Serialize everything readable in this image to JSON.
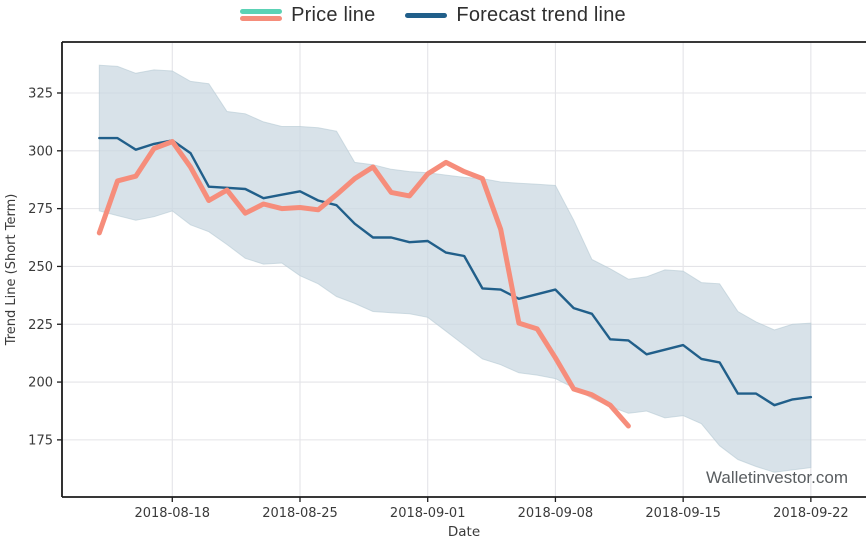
{
  "legend": {
    "price_label": "Price line",
    "forecast_label": "Forecast trend line"
  },
  "watermark": "Walletinvestor.com",
  "colors": {
    "price": "#f68d7b",
    "price_legend_teal": "#5bd2b5",
    "forecast": "#215f8a",
    "band": "#c9d7e0",
    "grid": "#e4e4e8",
    "axis": "#1c1c1c",
    "tick_text": "#3a3a3a"
  },
  "axes": {
    "x_title": "Date",
    "y_title": "Trend Line (Short Term)",
    "y_ticks": [
      325,
      300,
      275,
      250,
      225,
      200,
      175
    ],
    "x_tick_labels": [
      "2018-08-18",
      "2018-08-25",
      "2018-09-01",
      "2018-09-08",
      "2018-09-15",
      "2018-09-22"
    ],
    "x_tick_indices": [
      4,
      11,
      18,
      25,
      32,
      39
    ]
  },
  "chart_data": {
    "type": "line",
    "title": "",
    "xlabel": "Date",
    "ylabel": "Trend Line (Short Term)",
    "ylim": [
      150,
      347
    ],
    "grid": true,
    "legend_position": "top-center",
    "x": [
      "2018-08-14",
      "2018-08-15",
      "2018-08-16",
      "2018-08-17",
      "2018-08-18",
      "2018-08-19",
      "2018-08-20",
      "2018-08-21",
      "2018-08-22",
      "2018-08-23",
      "2018-08-24",
      "2018-08-25",
      "2018-08-26",
      "2018-08-27",
      "2018-08-28",
      "2018-08-29",
      "2018-08-30",
      "2018-08-31",
      "2018-09-01",
      "2018-09-02",
      "2018-09-03",
      "2018-09-04",
      "2018-09-05",
      "2018-09-06",
      "2018-09-07",
      "2018-09-08",
      "2018-09-09",
      "2018-09-10",
      "2018-09-11",
      "2018-09-12",
      "2018-09-13",
      "2018-09-14",
      "2018-09-15",
      "2018-09-16",
      "2018-09-17",
      "2018-09-18",
      "2018-09-19",
      "2018-09-20",
      "2018-09-21",
      "2018-09-22"
    ],
    "series": [
      {
        "name": "Price line",
        "values": [
          264.5,
          287,
          289,
          301,
          304,
          293,
          278.5,
          283,
          273,
          277,
          275,
          275.5,
          274.5,
          281,
          288,
          293,
          282,
          280.5,
          290,
          295,
          291,
          288,
          266,
          225.5,
          223,
          210.5,
          197,
          194.5,
          190,
          181,
          null,
          null,
          null,
          null,
          null,
          null,
          null,
          null,
          null,
          null
        ]
      },
      {
        "name": "Forecast trend line",
        "values": [
          305.5,
          305.5,
          300.5,
          303,
          304.5,
          299,
          284.5,
          284,
          283.5,
          279.5,
          281,
          282.5,
          278.5,
          276.5,
          268.5,
          262.5,
          262.5,
          260.5,
          261,
          256,
          254.5,
          240.5,
          240,
          236,
          238,
          240,
          232,
          229.5,
          218.5,
          218,
          212,
          214,
          216,
          210,
          208.5,
          195,
          195,
          190,
          192.5,
          193.5
        ]
      }
    ],
    "band": {
      "name": "forecast confidence band",
      "upper": [
        337,
        336.5,
        333.5,
        335,
        334.5,
        330,
        329,
        317,
        316,
        312.5,
        310.5,
        310.5,
        310,
        308.5,
        295,
        294,
        292,
        291,
        290.5,
        289.5,
        288.5,
        288,
        286.5,
        286,
        285.5,
        285,
        270,
        253,
        249,
        244.5,
        245.5,
        248.5,
        248,
        243,
        242.5,
        230.5,
        226,
        222.5,
        225,
        225.5
      ],
      "lower": [
        274,
        272,
        270,
        271.5,
        274,
        268,
        265,
        259.5,
        253.5,
        251,
        251.5,
        246,
        242.5,
        237,
        234,
        230.5,
        230,
        229.5,
        228,
        222,
        216,
        210,
        207.5,
        204,
        203,
        201.5,
        197.5,
        193,
        189.5,
        186.5,
        187.5,
        184.5,
        185.5,
        182,
        172.5,
        166.5,
        163.5,
        161,
        162,
        163
      ]
    }
  }
}
